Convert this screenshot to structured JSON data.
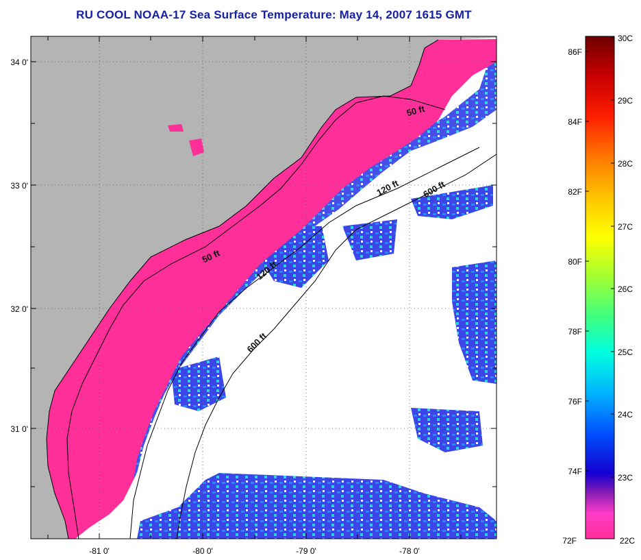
{
  "title": "RU COOL  NOAA-17  Sea Surface Temperature:  May 14, 2007 1615 GMT",
  "map": {
    "lat_labels": [
      "34 0'",
      "33 0'",
      "32 0'",
      "31 0'"
    ],
    "lon_labels": [
      "-81 0'",
      "-80 0'",
      "-79 0'",
      "-78 0'"
    ],
    "depth_labels": [
      "50 ft",
      "50 ft",
      "120 ft",
      "120 ft",
      "600 ft",
      "600 ft"
    ],
    "colors": {
      "land": "#b4b4b4",
      "cold_water": "#ff2f9a",
      "cloud_mask": "#ffffff",
      "warm_water": "#3c46e6",
      "contour": "#000000"
    }
  },
  "colorbar": {
    "fahrenheit_labels": [
      "86F",
      "84F",
      "82F",
      "80F",
      "78F",
      "76F",
      "74F",
      "72F"
    ],
    "celsius_labels": [
      "30C",
      "29C",
      "28C",
      "27C",
      "26C",
      "25C",
      "24C",
      "23C",
      "22C"
    ],
    "colors_top_to_bottom": [
      "#6e0000",
      "#c80000",
      "#ff1e00",
      "#ff7800",
      "#ffcc00",
      "#ffff00",
      "#a0ff32",
      "#3cff82",
      "#00ffe0",
      "#00b4ff",
      "#0050ff",
      "#1400d2",
      "#8c1eb4",
      "#ff3cc8",
      "#ff2f9a"
    ]
  }
}
